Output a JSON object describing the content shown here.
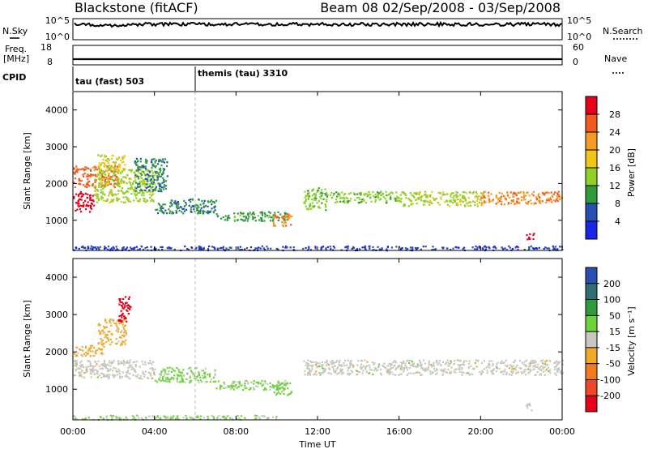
{
  "header": {
    "station": "Blackstone (fitACF)",
    "beam_date": "Beam 08  02/Sep/2008 - 03/Sep/2008"
  },
  "strips": {
    "nsky_label": "N.Sky",
    "nsky_ticks": [
      "10^5",
      "10^0"
    ],
    "nsearch_label": "N.Search",
    "nsearch_ticks": [
      "10^5",
      "10^0"
    ],
    "freq_label_1": "Freq.",
    "freq_label_2": "[MHz]",
    "freq_ticks": [
      "18",
      "8"
    ],
    "nave_label": "Nave",
    "nave_ticks": [
      "60",
      "0"
    ],
    "cpid_label": "CPID",
    "cpid_1": "tau (fast) 503",
    "cpid_2": "themis (tau) 3310"
  },
  "axes": {
    "ylabel": "Slant Range [km]",
    "y_ticks": [
      "4000",
      "3000",
      "2000",
      "1000"
    ],
    "x_ticks": [
      "00:00",
      "04:00",
      "08:00",
      "12:00",
      "16:00",
      "20:00",
      "00:00"
    ],
    "xlabel": "Time UT"
  },
  "colorbars": {
    "power": {
      "label": "Power [dB]",
      "ticks": [
        "28",
        "24",
        "20",
        "16",
        "12",
        "8",
        "4"
      ],
      "colors": [
        "#e8001a",
        "#f25a1c",
        "#f59a23",
        "#f0c418",
        "#8fd12a",
        "#2f9a3c",
        "#2a4fb2",
        "#1826e8"
      ]
    },
    "velocity": {
      "label": "Velocity [m s⁻¹]",
      "ticks": [
        "200",
        "100",
        "50",
        "15",
        "-15",
        "-50",
        "-100",
        "-200"
      ],
      "colors": [
        "#2a4fb2",
        "#2f6f72",
        "#2f9a3c",
        "#6ed33a",
        "#c8c8c0",
        "#efaa2a",
        "#f07a22",
        "#f0462a",
        "#e8001a"
      ]
    }
  },
  "chart_data": {
    "type": "heatmap",
    "title": "Blackstone (fitACF)",
    "subtitle": "Beam 08  02/Sep/2008 - 03/Sep/2008",
    "xlabel": "Time UT",
    "ylabel": "Slant Range [km]",
    "xlim_hours": [
      0,
      24
    ],
    "ylim_km": [
      180,
      4500
    ],
    "panels": [
      {
        "name": "Power",
        "unit": "dB",
        "colorbar_range": [
          0,
          30
        ],
        "regions": [
          {
            "t0": 0.0,
            "t1": 1.0,
            "r0": 1250,
            "r1": 1800,
            "value": 28
          },
          {
            "t0": 0.0,
            "t1": 2.2,
            "r0": 1900,
            "r1": 2500,
            "value": 24
          },
          {
            "t0": 1.2,
            "t1": 2.6,
            "r0": 2300,
            "r1": 2800,
            "value": 16
          },
          {
            "t0": 1.0,
            "t1": 4.0,
            "r0": 1500,
            "r1": 2400,
            "value": 14
          },
          {
            "t0": 3.0,
            "t1": 4.6,
            "r0": 1800,
            "r1": 2700,
            "value": 8
          },
          {
            "t0": 4.0,
            "t1": 7.0,
            "r0": 1200,
            "r1": 1600,
            "value": 8
          },
          {
            "t0": 7.0,
            "t1": 10.5,
            "r0": 1000,
            "r1": 1250,
            "value": 10
          },
          {
            "t0": 9.8,
            "t1": 10.7,
            "r0": 850,
            "r1": 1200,
            "value": 22
          },
          {
            "t0": 11.3,
            "t1": 12.5,
            "r0": 1300,
            "r1": 1900,
            "value": 12
          },
          {
            "t0": 12.5,
            "t1": 16.0,
            "r0": 1500,
            "r1": 1800,
            "value": 12
          },
          {
            "t0": 16.0,
            "t1": 20.0,
            "r0": 1400,
            "r1": 1800,
            "value": 14
          },
          {
            "t0": 20.0,
            "t1": 24.0,
            "r0": 1450,
            "r1": 1800,
            "value": 22
          },
          {
            "t0": 0.0,
            "t1": 24.0,
            "r0": 200,
            "r1": 320,
            "value": 4
          },
          {
            "t0": 22.2,
            "t1": 22.6,
            "r0": 500,
            "r1": 700,
            "value": 28
          }
        ]
      },
      {
        "name": "Velocity",
        "unit": "m s-1",
        "colorbar_range": [
          -200,
          200
        ],
        "regions": [
          {
            "t0": 0.0,
            "t1": 1.5,
            "r0": 1900,
            "r1": 2200,
            "value": -40
          },
          {
            "t0": 1.2,
            "t1": 2.6,
            "r0": 2200,
            "r1": 2900,
            "value": -40
          },
          {
            "t0": 2.2,
            "t1": 2.8,
            "r0": 2800,
            "r1": 3500,
            "value": -180
          },
          {
            "t0": 0.0,
            "t1": 4.0,
            "r0": 1300,
            "r1": 1800,
            "value": 0
          },
          {
            "t0": 4.0,
            "t1": 7.0,
            "r0": 1200,
            "r1": 1600,
            "value": 30
          },
          {
            "t0": 7.0,
            "t1": 10.5,
            "r0": 1000,
            "r1": 1250,
            "value": 30
          },
          {
            "t0": 9.8,
            "t1": 10.7,
            "r0": 850,
            "r1": 1200,
            "value": 40
          },
          {
            "t0": 11.3,
            "t1": 24.0,
            "r0": 1400,
            "r1": 1800,
            "value": 0
          },
          {
            "t0": 0.0,
            "t1": 10.0,
            "r0": 200,
            "r1": 320,
            "value": 30
          },
          {
            "t0": 22.2,
            "t1": 22.6,
            "r0": 450,
            "r1": 650,
            "value": 0
          }
        ]
      }
    ],
    "strips": [
      {
        "name": "N.Sky",
        "scale": "log",
        "range": [
          1,
          100000
        ]
      },
      {
        "name": "Freq.",
        "unit": "MHz",
        "range": [
          8,
          18
        ],
        "value": 10.5
      },
      {
        "name": "CPID",
        "segments": [
          {
            "label": "tau (fast) 503",
            "t0": 0.0,
            "t1": 6.0
          },
          {
            "label": "themis (tau) 3310",
            "t0": 6.0,
            "t1": 24.0
          }
        ]
      }
    ]
  }
}
